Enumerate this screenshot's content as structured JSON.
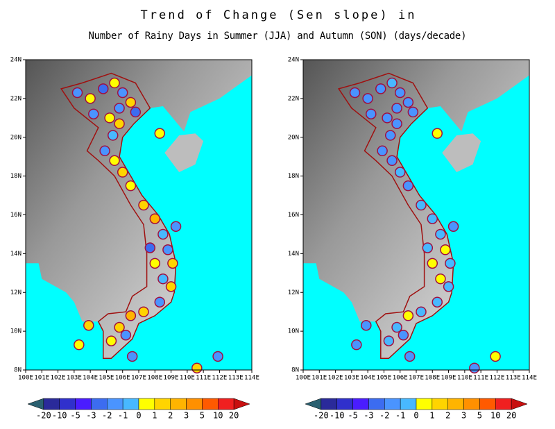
{
  "title": "Trend of Change (Sen slope) in",
  "subtitle": "Number of Rainy Days in Summer (JJA) and Autumn (SON) (days/decade)",
  "maps": [
    {
      "xlim": [
        100,
        114
      ],
      "ylim": [
        8,
        24
      ],
      "xticks": [
        {
          "value": 100,
          "label": "100E"
        },
        {
          "value": 101,
          "label": "101E"
        },
        {
          "value": 102,
          "label": "102E"
        },
        {
          "value": 103,
          "label": "103E"
        },
        {
          "value": 104,
          "label": "104E"
        },
        {
          "value": 105,
          "label": "105E"
        },
        {
          "value": 106,
          "label": "106E"
        },
        {
          "value": 107,
          "label": "107E"
        },
        {
          "value": 108,
          "label": "108E"
        },
        {
          "value": 109,
          "label": "109E"
        },
        {
          "value": 110,
          "label": "110E"
        },
        {
          "value": 111,
          "label": "111E"
        },
        {
          "value": 112,
          "label": "112E"
        },
        {
          "value": 113,
          "label": "113E"
        },
        {
          "value": 114,
          "label": "114E"
        }
      ],
      "yticks": [
        {
          "value": 8,
          "label": "8N"
        },
        {
          "value": 10,
          "label": "10N"
        },
        {
          "value": 12,
          "label": "12N"
        },
        {
          "value": 14,
          "label": "14N"
        },
        {
          "value": 16,
          "label": "16N"
        },
        {
          "value": 18,
          "label": "18N"
        },
        {
          "value": 20,
          "label": "20N"
        },
        {
          "value": 22,
          "label": "22N"
        },
        {
          "value": 24,
          "label": "24N"
        }
      ],
      "stations": {
        "lon": [
          103.2,
          104,
          104.8,
          105.5,
          106,
          106.5,
          105.8,
          105.2,
          104.2,
          106.8,
          105.8,
          105.4,
          104.9,
          105.5,
          106,
          106.5,
          107.3,
          108,
          108.5,
          108.8,
          109.1,
          108.5,
          109,
          108.3,
          107.3,
          106.5,
          105.8,
          105.3,
          106.2,
          103.9,
          107.7,
          108,
          108.3,
          106.6,
          110.6,
          111.9,
          103.3,
          109.3
        ],
        "lat": [
          22.3,
          22,
          22.5,
          22.8,
          22.3,
          21.8,
          21.5,
          21,
          21.2,
          21.3,
          20.7,
          20.1,
          19.3,
          18.8,
          18.2,
          17.5,
          16.5,
          15.8,
          15,
          14.2,
          13.5,
          12.7,
          12.3,
          11.5,
          11,
          10.8,
          10.2,
          9.5,
          9.8,
          10.3,
          14.3,
          13.5,
          20.2,
          8.7,
          8.1,
          8.7,
          9.3,
          15.4
        ],
        "class": [
          5,
          7,
          4,
          7,
          5,
          8,
          5,
          7,
          5,
          4,
          8,
          6,
          5,
          7,
          8,
          7,
          8,
          9,
          6,
          5,
          8,
          6,
          8,
          5,
          8,
          9,
          8,
          7,
          5,
          8,
          4,
          7,
          7,
          5,
          8,
          5,
          7,
          5
        ]
      }
    },
    {
      "xlim": [
        100,
        114
      ],
      "ylim": [
        8,
        24
      ],
      "xticks": [
        {
          "value": 100,
          "label": "100E"
        },
        {
          "value": 101,
          "label": "101E"
        },
        {
          "value": 102,
          "label": "102E"
        },
        {
          "value": 103,
          "label": "103E"
        },
        {
          "value": 104,
          "label": "104E"
        },
        {
          "value": 105,
          "label": "105E"
        },
        {
          "value": 106,
          "label": "106E"
        },
        {
          "value": 107,
          "label": "107E"
        },
        {
          "value": 108,
          "label": "108E"
        },
        {
          "value": 109,
          "label": "109E"
        },
        {
          "value": 110,
          "label": "110E"
        },
        {
          "value": 111,
          "label": "111E"
        },
        {
          "value": 112,
          "label": "112E"
        },
        {
          "value": 113,
          "label": "113E"
        },
        {
          "value": 114,
          "label": "114E"
        }
      ],
      "yticks": [
        {
          "value": 8,
          "label": "8N"
        },
        {
          "value": 10,
          "label": "10N"
        },
        {
          "value": 12,
          "label": "12N"
        },
        {
          "value": 14,
          "label": "14N"
        },
        {
          "value": 16,
          "label": "16N"
        },
        {
          "value": 18,
          "label": "18N"
        },
        {
          "value": 20,
          "label": "20N"
        },
        {
          "value": 22,
          "label": "22N"
        },
        {
          "value": 24,
          "label": "24N"
        }
      ],
      "stations": {
        "lon": [
          103.2,
          104,
          104.8,
          105.5,
          106,
          106.5,
          105.8,
          105.2,
          104.2,
          106.8,
          105.8,
          105.4,
          104.9,
          105.5,
          106,
          106.5,
          107.3,
          108,
          108.5,
          108.8,
          109.1,
          108.5,
          109,
          108.3,
          107.3,
          106.5,
          105.8,
          105.3,
          106.2,
          103.9,
          107.7,
          108,
          108.3,
          106.6,
          110.6,
          111.9,
          103.3,
          109.3
        ],
        "lat": [
          22.3,
          22,
          22.5,
          22.8,
          22.3,
          21.8,
          21.5,
          21,
          21.2,
          21.3,
          20.7,
          20.1,
          19.3,
          18.8,
          18.2,
          17.5,
          16.5,
          15.8,
          15,
          14.2,
          13.5,
          12.7,
          12.3,
          11.5,
          11,
          10.8,
          10.2,
          9.5,
          9.8,
          10.3,
          14.3,
          13.5,
          20.2,
          8.7,
          8.1,
          8.7,
          9.3,
          15.4
        ],
        "class": [
          5,
          5,
          5,
          6,
          5,
          5,
          5,
          5,
          5,
          5,
          5,
          5,
          5,
          5,
          6,
          5,
          6,
          6,
          6,
          7,
          6,
          7,
          6,
          6,
          6,
          7,
          6,
          6,
          5,
          5,
          6,
          7,
          7,
          5,
          5,
          7,
          5,
          5
        ]
      }
    }
  ],
  "colorbar": {
    "levels": [
      -20,
      -10,
      -5,
      -3,
      -2,
      -1,
      0,
      1,
      2,
      3,
      5,
      10,
      20
    ],
    "colors": [
      "#2a6070",
      "#2a2a9a",
      "#3030cc",
      "#4a1cff",
      "#3c6cf0",
      "#4a94ff",
      "#48b8ff",
      "#ffff00",
      "#ffd400",
      "#ffb400",
      "#ff9000",
      "#ff5a00",
      "#f02020",
      "#c81010"
    ]
  }
}
